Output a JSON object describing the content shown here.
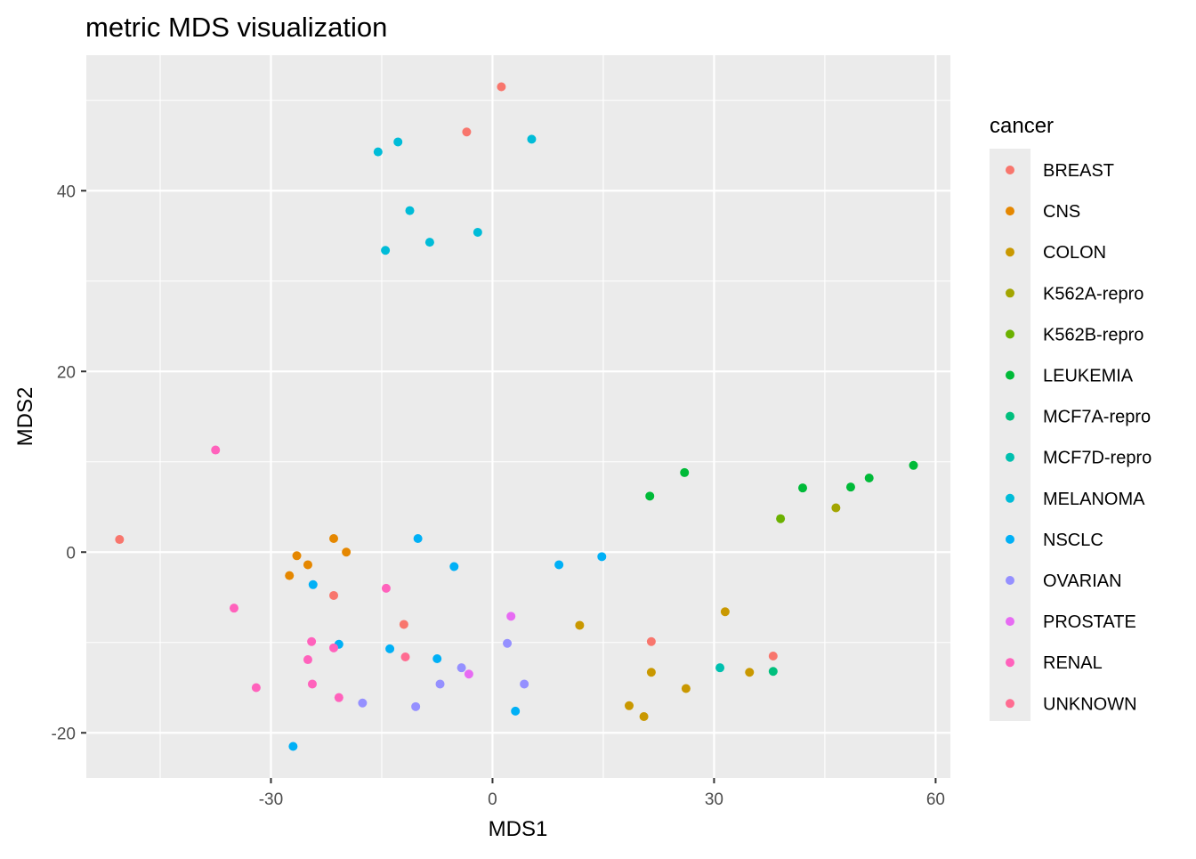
{
  "chart_data": {
    "type": "scatter",
    "title": "metric MDS visualization",
    "xlabel": "MDS1",
    "ylabel": "MDS2",
    "xlim": [
      -55,
      62
    ],
    "ylim": [
      -25,
      55
    ],
    "x_ticks": [
      -30,
      0,
      30,
      60
    ],
    "x_tick_labels": [
      "-30",
      "0",
      "30",
      "60"
    ],
    "y_ticks": [
      -20,
      0,
      20,
      40
    ],
    "y_tick_labels": [
      "-20",
      "0",
      "20",
      "40"
    ],
    "grid": true,
    "legend_title": "cancer",
    "legend_position": "right",
    "series": [
      {
        "name": "BREAST",
        "color": "#F8766D",
        "points": [
          [
            1.2,
            51.5
          ],
          [
            -3.5,
            46.5
          ],
          [
            -50.5,
            1.4
          ],
          [
            -21.5,
            -4.8
          ],
          [
            -12,
            -8
          ],
          [
            21.5,
            -9.9
          ],
          [
            38,
            -11.5
          ]
        ]
      },
      {
        "name": "CNS",
        "color": "#E58700",
        "points": [
          [
            -21.5,
            1.5
          ],
          [
            -26.5,
            -0.4
          ],
          [
            -25,
            -1.4
          ],
          [
            -27.5,
            -2.6
          ],
          [
            -19.8,
            0.0
          ]
        ]
      },
      {
        "name": "COLON",
        "color": "#C99800",
        "points": [
          [
            11.8,
            -8.1
          ],
          [
            21.5,
            -13.3
          ],
          [
            26.2,
            -15.1
          ],
          [
            18.5,
            -17
          ],
          [
            20.5,
            -18.2
          ],
          [
            31.5,
            -6.6
          ],
          [
            34.8,
            -13.3
          ]
        ]
      },
      {
        "name": "K562A-repro",
        "color": "#A3A500",
        "points": [
          [
            46.5,
            4.9
          ]
        ]
      },
      {
        "name": "K562B-repro",
        "color": "#6BB100",
        "points": [
          [
            39,
            3.7
          ]
        ]
      },
      {
        "name": "LEUKEMIA",
        "color": "#00BA38",
        "points": [
          [
            21.3,
            6.2
          ],
          [
            26,
            8.8
          ],
          [
            42,
            7.1
          ],
          [
            48.5,
            7.2
          ],
          [
            51,
            8.2
          ],
          [
            57,
            9.6
          ]
        ]
      },
      {
        "name": "MCF7A-repro",
        "color": "#00BF7D",
        "points": [
          [
            38,
            -13.2
          ]
        ]
      },
      {
        "name": "MCF7D-repro",
        "color": "#00C0AF",
        "points": [
          [
            30.8,
            -12.8
          ]
        ]
      },
      {
        "name": "MELANOMA",
        "color": "#00BCD8",
        "points": [
          [
            -15.5,
            44.3
          ],
          [
            -12.8,
            45.4
          ],
          [
            5.3,
            45.7
          ],
          [
            -11.2,
            37.8
          ],
          [
            -8.5,
            34.3
          ],
          [
            -2,
            35.4
          ],
          [
            -14.5,
            33.4
          ]
        ]
      },
      {
        "name": "NSCLC",
        "color": "#00B0F6",
        "points": [
          [
            -10.1,
            1.5
          ],
          [
            -5.2,
            -1.6
          ],
          [
            9,
            -1.4
          ],
          [
            14.8,
            -0.5
          ],
          [
            -24.3,
            -3.6
          ],
          [
            -20.8,
            -10.2
          ],
          [
            -13.9,
            -10.7
          ],
          [
            -7.5,
            -11.8
          ],
          [
            3.1,
            -17.6
          ],
          [
            -27,
            -21.5
          ]
        ]
      },
      {
        "name": "OVARIAN",
        "color": "#9590FF",
        "points": [
          [
            2,
            -10.1
          ],
          [
            -4.2,
            -12.8
          ],
          [
            -7.1,
            -14.6
          ],
          [
            4.3,
            -14.6
          ],
          [
            -17.6,
            -16.7
          ],
          [
            -10.4,
            -17.1
          ]
        ]
      },
      {
        "name": "PROSTATE",
        "color": "#E76BF3",
        "points": [
          [
            2.5,
            -7.1
          ],
          [
            -3.2,
            -13.5
          ]
        ]
      },
      {
        "name": "RENAL",
        "color": "#FF62BC",
        "points": [
          [
            -37.5,
            11.3
          ],
          [
            -35,
            -6.2
          ],
          [
            -14.4,
            -4
          ],
          [
            -24.5,
            -9.9
          ],
          [
            -25,
            -11.9
          ],
          [
            -21.5,
            -10.6
          ],
          [
            -24.4,
            -14.6
          ],
          [
            -32,
            -15
          ],
          [
            -20.8,
            -16.1
          ]
        ]
      },
      {
        "name": "UNKNOWN",
        "color": "#FF6C91",
        "points": [
          [
            -11.8,
            -11.6
          ]
        ]
      }
    ]
  }
}
